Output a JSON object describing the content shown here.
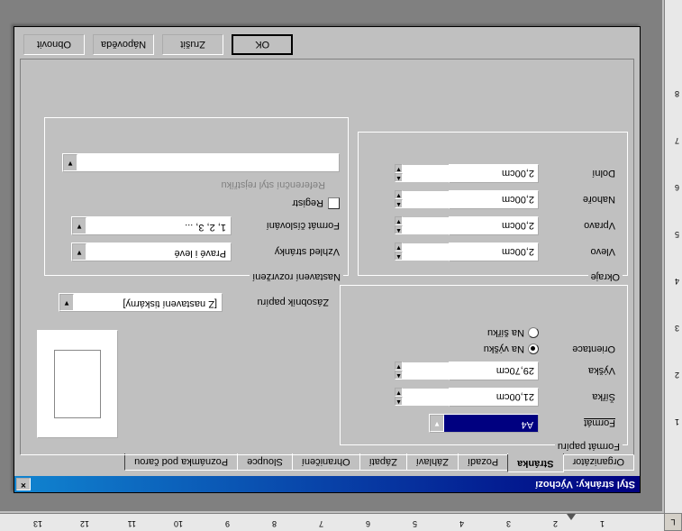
{
  "ruler_corner": "L",
  "dialog": {
    "title": "Styl stránky: Výchozí",
    "tabs": [
      "Organizátor",
      "Stránka",
      "Pozadí",
      "Záhlaví",
      "Zápatí",
      "Ohraničení",
      "Sloupce",
      "Poznámka pod čarou"
    ],
    "active_tab": 1,
    "buttons": {
      "ok": "OK",
      "cancel": "Zrušit",
      "help": "Nápověda",
      "reset": "Obnovit"
    }
  },
  "paper_group": {
    "title": "Formát papíru",
    "format_lbl": "Formát",
    "format_val": "A4",
    "width_lbl": "Šířka",
    "width_val": "21,00cm",
    "height_lbl": "Výška",
    "height_val": "29,70cm",
    "orient_lbl": "Orientace",
    "portrait": "Na výšku",
    "landscape": "Na šířku",
    "tray_lbl": "Zásobník papíru",
    "tray_val": "[Z nastavení tiskárny]"
  },
  "margins_group": {
    "title": "Okraje",
    "left_lbl": "Vlevo",
    "left_val": "2,00cm",
    "right_lbl": "Vpravo",
    "right_val": "2,00cm",
    "top_lbl": "Nahoře",
    "top_val": "2,00cm",
    "bottom_lbl": "Dolní",
    "bottom_val": "2,00cm"
  },
  "layout_group": {
    "title": "Nastavení rozvržení",
    "layout_lbl": "Vzhled stránky",
    "layout_val": "Pravé i levé",
    "num_lbl": "Formát číslování",
    "num_val": "1, 2, 3, ...",
    "register_lbl": "Registr",
    "refstyle_lbl": "Referenční styl rejstříku",
    "refstyle_val": ""
  },
  "ruler_nums": [
    "1",
    "2",
    "3",
    "4",
    "5",
    "6",
    "7",
    "8",
    "9",
    "10",
    "11",
    "12",
    "13"
  ],
  "ruler_v_nums": [
    "1",
    "2",
    "3",
    "4",
    "5",
    "6",
    "7",
    "8"
  ]
}
